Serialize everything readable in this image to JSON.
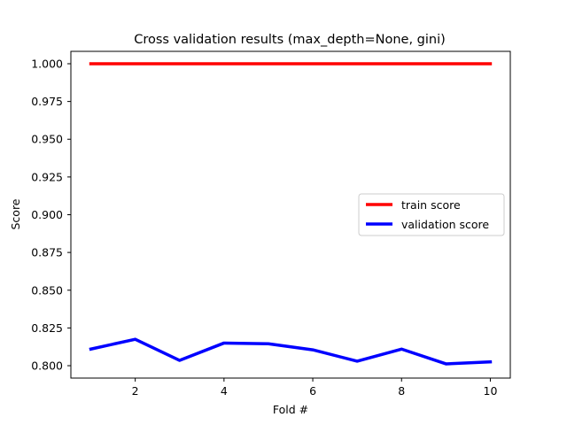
{
  "chart_data": {
    "type": "line",
    "title": "Cross validation results (max_depth=None, gini)",
    "xlabel": "Fold #",
    "ylabel": "Score",
    "x": [
      1,
      2,
      3,
      4,
      5,
      6,
      7,
      8,
      9,
      10
    ],
    "xlim": [
      0.55,
      10.45
    ],
    "ylim": [
      0.7918,
      1.0082
    ],
    "xticks": [
      2,
      4,
      6,
      8,
      10
    ],
    "yticks": [
      0.8,
      0.825,
      0.85,
      0.875,
      0.9,
      0.925,
      0.95,
      0.975,
      1.0
    ],
    "ytick_labels": [
      "0.800",
      "0.825",
      "0.850",
      "0.875",
      "0.900",
      "0.925",
      "0.950",
      "0.975",
      "1.000"
    ],
    "grid": false,
    "legend_position": "center-right",
    "series": [
      {
        "name": "train score",
        "color": "#ff0000",
        "values": [
          1.0,
          1.0,
          1.0,
          1.0,
          1.0,
          1.0,
          1.0,
          1.0,
          1.0,
          1.0
        ]
      },
      {
        "name": "validation score",
        "color": "#0000ff",
        "values": [
          0.811,
          0.8175,
          0.8035,
          0.815,
          0.8145,
          0.8105,
          0.803,
          0.811,
          0.8012,
          0.8025
        ]
      }
    ]
  }
}
